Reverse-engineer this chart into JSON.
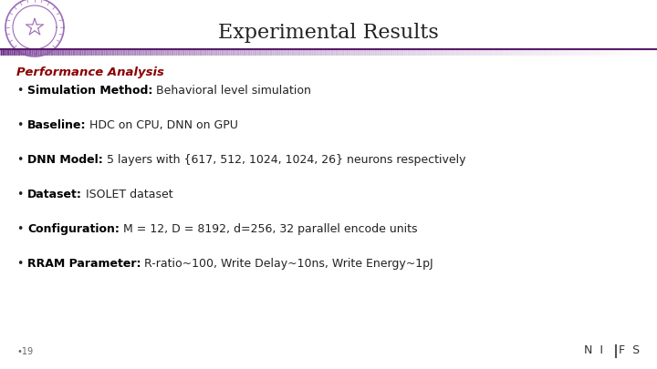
{
  "title": "Experimental Results",
  "title_fontsize": 16,
  "title_color": "#222222",
  "background_color": "#ffffff",
  "section_title": "Performance Analysis",
  "section_title_color": "#8b0000",
  "section_title_fontsize": 9.5,
  "bullet_items": [
    {
      "bold": "Simulation Method:",
      "normal": " Behavioral level simulation"
    },
    {
      "bold": "Baseline:",
      "normal": " HDC on CPU, DNN on GPU"
    },
    {
      "bold": "DNN Model:",
      "normal": " 5 layers with {617, 512, 1024, 1024, 26} neurons respectively"
    },
    {
      "bold": "Dataset:",
      "normal": " ISOLET dataset"
    },
    {
      "bold": "Configuration:",
      "normal": " M = 12, D = 8192, d=256, 32 parallel encode units"
    },
    {
      "bold": "RRAM Parameter:",
      "normal": " R-ratio~100, Write Delay~10ns, Write Energy~1pJ"
    }
  ],
  "bullet_fontsize": 9.0,
  "bullet_color": "#222222",
  "bullet_bold_color": "#000000",
  "page_number": "•19",
  "line_color_purple": "#6b2d8b",
  "footer_text_color": "#333333"
}
